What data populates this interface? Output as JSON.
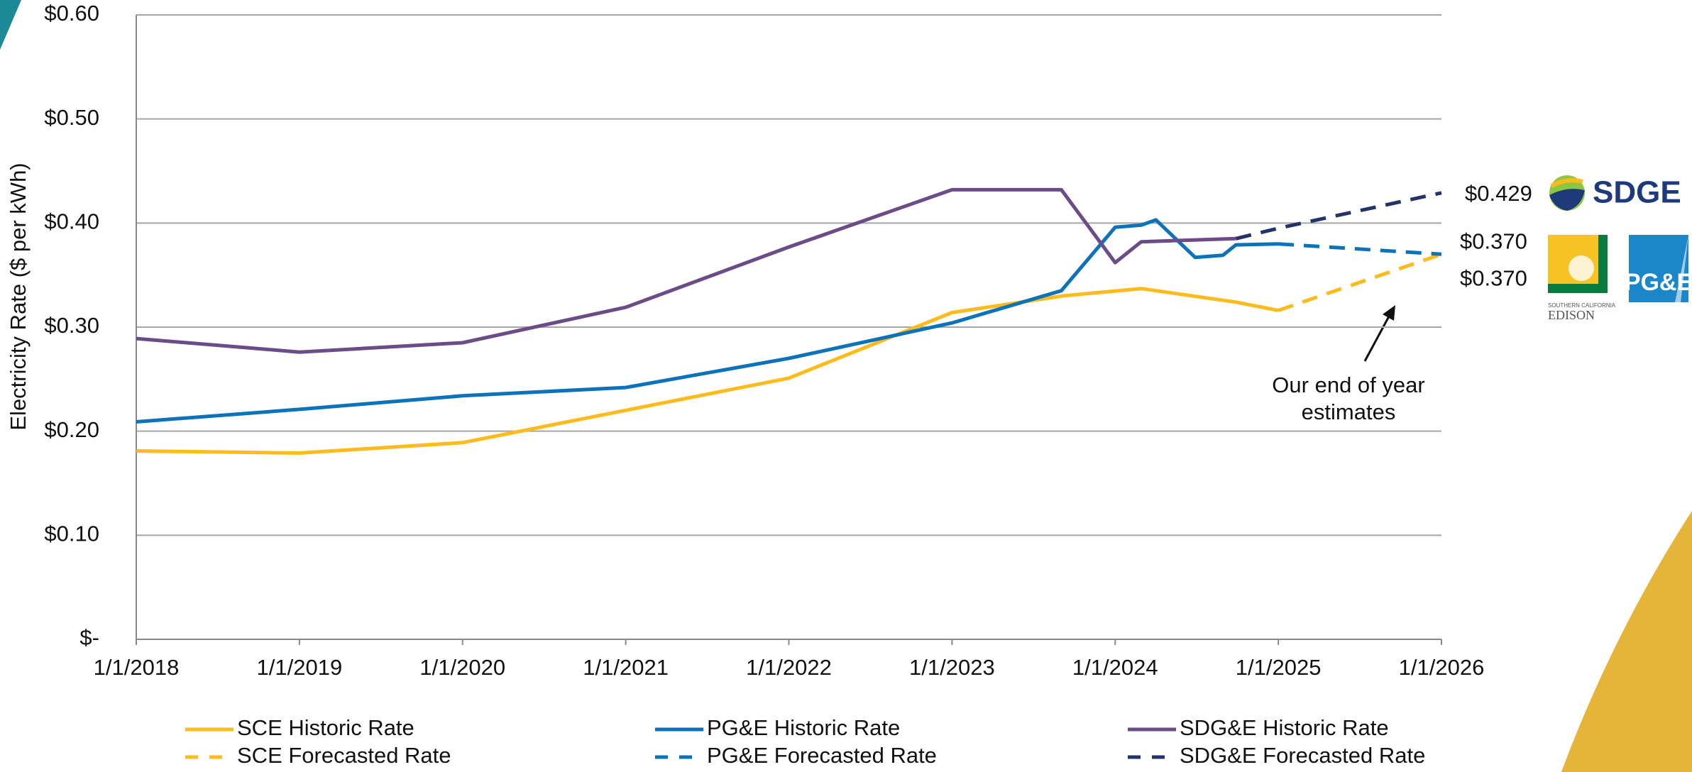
{
  "chart_data": {
    "type": "line",
    "ylabel": "Electricity Rate ($ per kWh)",
    "xlim": [
      2018,
      2026
    ],
    "xticks": [
      {
        "value": 2018,
        "label": "1/1/2018"
      },
      {
        "value": 2019,
        "label": "1/1/2019"
      },
      {
        "value": 2020,
        "label": "1/1/2020"
      },
      {
        "value": 2021,
        "label": "1/1/2021"
      },
      {
        "value": 2022,
        "label": "1/1/2022"
      },
      {
        "value": 2023,
        "label": "1/1/2023"
      },
      {
        "value": 2024,
        "label": "1/1/2024"
      },
      {
        "value": 2025,
        "label": "1/1/2025"
      },
      {
        "value": 2026,
        "label": "1/1/2026"
      }
    ],
    "ylim": [
      0,
      0.6
    ],
    "yticks": [
      {
        "value": 0,
        "label": "$-"
      },
      {
        "value": 0.1,
        "label": "$0.10"
      },
      {
        "value": 0.2,
        "label": "$0.20"
      },
      {
        "value": 0.3,
        "label": "$0.30"
      },
      {
        "value": 0.4,
        "label": "$0.40"
      },
      {
        "value": 0.5,
        "label": "$0.50"
      },
      {
        "value": 0.6,
        "label": "$0.60"
      }
    ],
    "grid": true,
    "series": [
      {
        "name": "SCE Historic Rate",
        "color": "#fdbb1e",
        "style": "solid",
        "x": [
          2018,
          2019,
          2020,
          2021,
          2022,
          2023,
          2023.68,
          2024.16,
          2024.74,
          2025
        ],
        "values": [
          0.181,
          0.179,
          0.189,
          0.22,
          0.251,
          0.314,
          0.33,
          0.337,
          0.324,
          0.316
        ]
      },
      {
        "name": "SCE Forecasted Rate",
        "color": "#fdbb1e",
        "style": "dashed",
        "x": [
          2025,
          2026
        ],
        "values": [
          0.316,
          0.37
        ],
        "value_labels": [
          null,
          "$0.370"
        ]
      },
      {
        "name": "PG&E Historic Rate",
        "color": "#0c72ba",
        "style": "solid",
        "x": [
          2018,
          2019,
          2020,
          2021,
          2022,
          2023,
          2023.67,
          2024,
          2024.16,
          2024.25,
          2024.49,
          2024.66,
          2024.74,
          2025
        ],
        "values": [
          0.209,
          0.221,
          0.234,
          0.242,
          0.27,
          0.304,
          0.335,
          0.396,
          0.398,
          0.403,
          0.367,
          0.369,
          0.379,
          0.38
        ]
      },
      {
        "name": "PG&E Forecasted Rate",
        "color": "#0c72ba",
        "style": "dashed",
        "x": [
          2025,
          2026
        ],
        "values": [
          0.38,
          0.37
        ],
        "value_labels": [
          null,
          "$0.370"
        ]
      },
      {
        "name": "SDG&E Historic Rate",
        "color": "#6b4c88",
        "style": "solid",
        "x": [
          2018,
          2019,
          2020,
          2021,
          2022,
          2023,
          2023.67,
          2024,
          2024.16,
          2024.74
        ],
        "values": [
          0.289,
          0.276,
          0.285,
          0.319,
          0.377,
          0.432,
          0.432,
          0.362,
          0.382,
          0.385
        ]
      },
      {
        "name": "SDG&E Forecasted Rate",
        "color": "#23336a",
        "style": "dashed",
        "x": [
          2024.74,
          2025,
          2026
        ],
        "values": [
          0.385,
          0.395,
          0.429
        ],
        "value_labels": [
          null,
          null,
          "$0.429"
        ]
      }
    ],
    "annotation": [
      "Our end of year",
      "estimates"
    ],
    "logos": {
      "sdge": "SDGE",
      "sce": [
        "SOUTHERN CALIFORNIA",
        "EDISON"
      ],
      "pge": "PG&E"
    }
  }
}
